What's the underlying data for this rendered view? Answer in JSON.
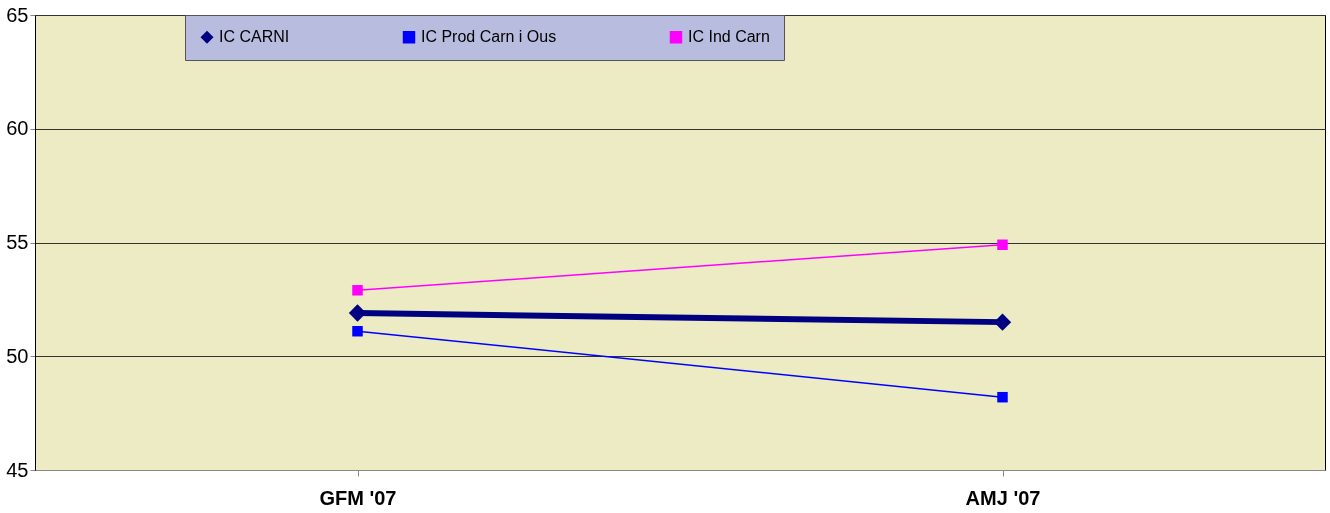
{
  "chart_data": {
    "type": "line",
    "categories": [
      "GFM '07",
      "AMJ '07"
    ],
    "series": [
      {
        "name": "IC CARNI",
        "color": "#000080",
        "values": [
          51.9,
          51.5
        ],
        "marker": "diamond"
      },
      {
        "name": "IC Prod Carn i Ous",
        "color": "#0000ff",
        "values": [
          51.1,
          48.2
        ],
        "marker": "square"
      },
      {
        "name": "IC Ind Carn",
        "color": "#ff00ff",
        "values": [
          52.9,
          54.9
        ],
        "marker": "square"
      }
    ],
    "ylim": [
      45,
      65
    ],
    "yticks": [
      45,
      50,
      55,
      60,
      65
    ],
    "grid": "y",
    "legend": "top"
  }
}
